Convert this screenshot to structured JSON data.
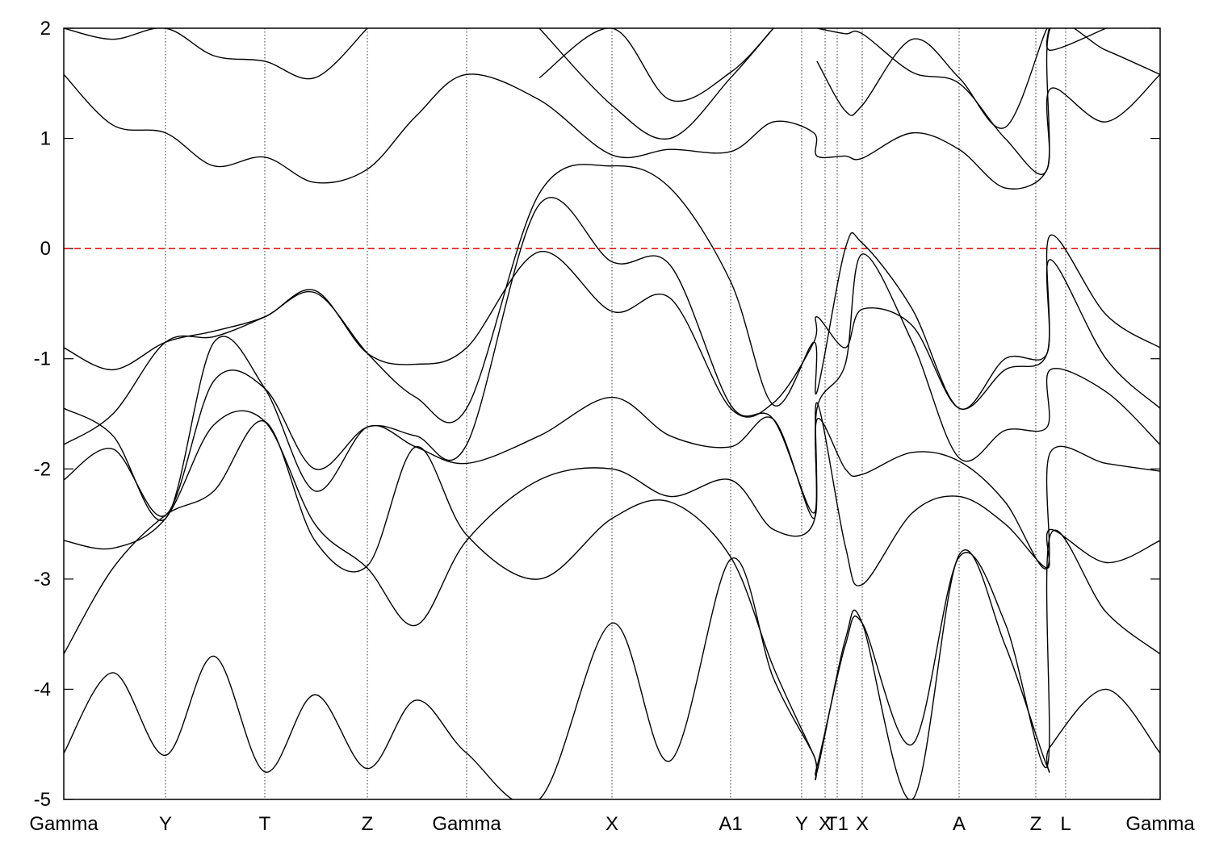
{
  "chart_data": {
    "type": "line",
    "xlim": [
      0,
      13.58
    ],
    "ylim": [
      -5,
      2
    ],
    "yticks": [
      -5,
      -4,
      -3,
      -2,
      -1,
      0,
      1,
      2
    ],
    "xticks": [
      {
        "value": 0,
        "label": "Gamma"
      },
      {
        "value": 1.26,
        "label": "Y"
      },
      {
        "value": 2.49,
        "label": "T"
      },
      {
        "value": 3.76,
        "label": "Z"
      },
      {
        "value": 4.99,
        "label": "Gamma"
      },
      {
        "value": 6.79,
        "label": "X"
      },
      {
        "value": 8.26,
        "label": "A1"
      },
      {
        "value": 9.14,
        "label": "Y"
      },
      {
        "value": 9.43,
        "label": "X"
      },
      {
        "value": 9.58,
        "label": "T1"
      },
      {
        "value": 9.89,
        "label": "X"
      },
      {
        "value": 11.09,
        "label": "A"
      },
      {
        "value": 12.04,
        "label": "Z"
      },
      {
        "value": 12.41,
        "label": "L"
      },
      {
        "value": 13.58,
        "label": "Gamma"
      }
    ],
    "xgrid": true,
    "reference_line": {
      "value": 0,
      "color": "#e00000"
    },
    "x": [
      0,
      0.61,
      1.26,
      1.86,
      2.49,
      3.11,
      3.76,
      4.36,
      4.99,
      5.89,
      6.79,
      7.51,
      8.26,
      8.79,
      9.29,
      9.33,
      9.68,
      9.89,
      10.51,
      11.09,
      11.66,
      12.18,
      12.22,
      12.91,
      13.58
    ],
    "series": [
      {
        "color": "#000000",
        "values": [
          -0.9,
          -1.1,
          -0.85,
          -0.75,
          -0.62,
          -0.38,
          -0.95,
          -1.05,
          -0.9,
          -0.03,
          -0.57,
          -0.45,
          -1.45,
          -1.4,
          -0.85,
          -0.62,
          -0.9,
          -0.55,
          -0.7,
          -1.45,
          -1.1,
          -0.95,
          0.12,
          -0.6,
          -0.9
        ]
      },
      {
        "color": "#000000",
        "values": [
          1.58,
          1.12,
          1.05,
          0.75,
          0.83,
          0.6,
          0.72,
          1.2,
          1.58,
          1.35,
          0.85,
          0.9,
          0.88,
          1.15,
          1.05,
          0.84,
          0.84,
          0.82,
          1.05,
          0.9,
          0.55,
          0.72,
          1.45,
          1.15,
          1.58
        ]
      },
      {
        "color": "#000000",
        "values": [
          -1.78,
          -1.5,
          -0.85,
          -0.8,
          -0.62,
          -0.4,
          -0.95,
          -1.35,
          -1.45,
          0.5,
          0.75,
          0.55,
          -0.3,
          -1.42,
          -0.85,
          -1.3,
          0.0,
          0.05,
          -0.55,
          -1.45,
          -1.0,
          -0.95,
          -0.1,
          -1.0,
          -1.45
        ]
      },
      {
        "color": "#000000",
        "values": [
          -2.1,
          -1.82,
          -2.42,
          -1.2,
          -1.27,
          -2.0,
          -1.62,
          -1.7,
          -1.78,
          0.4,
          -0.12,
          -0.15,
          -1.42,
          -1.55,
          -2.4,
          -1.45,
          -1.05,
          -0.05,
          -0.85,
          -1.9,
          -1.65,
          -1.62,
          -1.1,
          -1.3,
          -1.78
        ]
      },
      {
        "color": "#000000",
        "values": [
          -1.45,
          -1.7,
          -2.45,
          -0.85,
          -1.27,
          -2.2,
          -1.62,
          -1.8,
          -1.95,
          -1.7,
          -1.35,
          -1.7,
          -1.8,
          -1.55,
          -2.45,
          -1.55,
          -2.0,
          -2.05,
          -1.85,
          -1.93,
          -2.3,
          -2.9,
          -1.85,
          -1.95,
          -2.02
        ]
      },
      {
        "color": "#000000",
        "values": [
          -2.65,
          -2.72,
          -2.45,
          -1.6,
          -1.57,
          -2.5,
          -2.9,
          -3.42,
          -2.65,
          -2.1,
          -2.0,
          -2.25,
          -2.1,
          -2.55,
          -2.48,
          -1.4,
          -2.7,
          -3.05,
          -2.4,
          -2.25,
          -2.5,
          -2.9,
          -2.55,
          -2.85,
          -2.65
        ]
      },
      {
        "color": "#000000",
        "values": [
          -3.68,
          -2.9,
          -2.42,
          -2.2,
          -1.57,
          -2.65,
          -2.88,
          -1.8,
          -2.6,
          -3.0,
          -2.45,
          -2.3,
          -2.8,
          -3.8,
          -4.6,
          -4.7,
          -3.6,
          -3.4,
          -4.5,
          -2.8,
          -3.4,
          -4.7,
          -2.6,
          -3.3,
          -3.68
        ]
      },
      {
        "color": "#000000",
        "values": [
          -4.58,
          -3.85,
          -4.6,
          -3.7,
          -4.75,
          -4.05,
          -4.72,
          -4.1,
          -4.58,
          -5,
          -3.4,
          -4.65,
          -2.82,
          -3.9,
          -4.6,
          -4.75,
          -3.55,
          -3.4,
          -5,
          -2.78,
          -3.6,
          -4.7,
          -4.52,
          -4.0,
          -4.58
        ]
      },
      {
        "color": "#000000",
        "values": [
          2.0,
          1.9,
          2.0,
          1.75,
          1.7,
          1.55,
          2.0,
          null,
          null,
          1.55,
          2.0,
          1.35,
          1.6,
          2.0,
          null,
          1.7,
          1.25,
          1.3,
          1.9,
          1.55,
          1.1,
          2.0,
          1.8,
          2.0,
          null
        ]
      },
      {
        "color": "#000000",
        "values": [
          null,
          null,
          null,
          null,
          null,
          null,
          null,
          null,
          null,
          2.0,
          1.3,
          1.0,
          1.55,
          2.0,
          null,
          2.0,
          1.95,
          1.95,
          1.6,
          1.5,
          1.0,
          0.72,
          2.0,
          1.8,
          1.58
        ]
      }
    ]
  }
}
